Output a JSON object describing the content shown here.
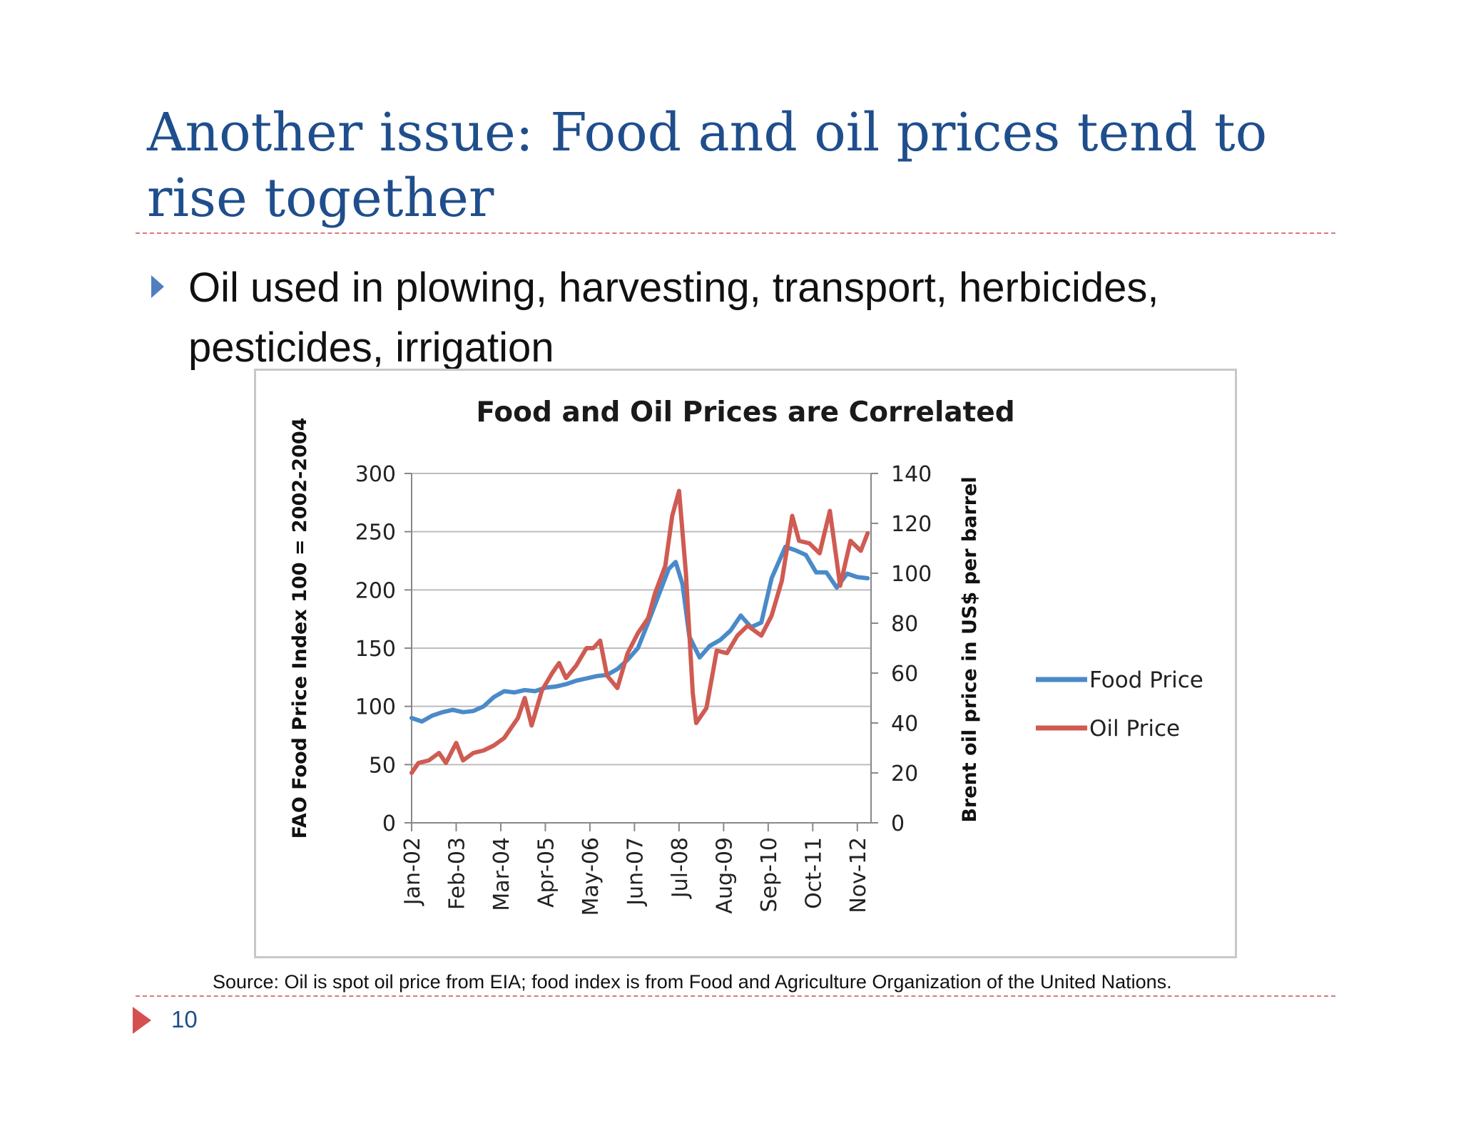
{
  "slide": {
    "title": "Another issue: Food and oil prices tend to rise together",
    "bullet": "Oil used in plowing, harvesting, transport, herbicides, pesticides, irrigation",
    "source": "Source: Oil is spot oil price from EIA; food index is from Food and Agriculture Organization of the United Nations.",
    "page_number": "10",
    "colors": {
      "title": "#1f4e8c",
      "bullet_marker": "#4f7fbf",
      "rule": "#d9797a",
      "page_marker": "#d64f4f"
    }
  },
  "chart_data": {
    "type": "line",
    "title": "Food and Oil Prices are Correlated",
    "y_left_label": "FAO Food Price Index 100 = 2002-2004",
    "y_right_label": "Brent oil price in US$ per barrel",
    "y_left_range": [
      0,
      300
    ],
    "y_left_ticks": [
      "0",
      "50",
      "100",
      "150",
      "200",
      "250",
      "300"
    ],
    "y_right_range": [
      0,
      140
    ],
    "y_right_ticks": [
      "0",
      "20",
      "40",
      "60",
      "80",
      "100",
      "120",
      "140"
    ],
    "x_tick_labels": [
      "Jan-02",
      "Feb-03",
      "Mar-04",
      "Apr-05",
      "May-06",
      "Jun-07",
      "Jul-08",
      "Aug-09",
      "Sep-10",
      "Oct-11",
      "Nov-12"
    ],
    "gridlines": "horizontal",
    "legend_position": "right",
    "series": [
      {
        "name": "Food Price",
        "axis": "left",
        "color": "#4a8ac9",
        "points": [
          [
            "2002-01",
            90
          ],
          [
            "2002-04",
            87
          ],
          [
            "2002-07",
            92
          ],
          [
            "2002-10",
            95
          ],
          [
            "2003-01",
            97
          ],
          [
            "2003-04",
            95
          ],
          [
            "2003-07",
            96
          ],
          [
            "2003-10",
            100
          ],
          [
            "2004-01",
            108
          ],
          [
            "2004-04",
            113
          ],
          [
            "2004-07",
            112
          ],
          [
            "2004-10",
            114
          ],
          [
            "2005-01",
            113
          ],
          [
            "2005-04",
            116
          ],
          [
            "2005-07",
            117
          ],
          [
            "2005-10",
            119
          ],
          [
            "2006-01",
            122
          ],
          [
            "2006-04",
            124
          ],
          [
            "2006-07",
            126
          ],
          [
            "2006-10",
            127
          ],
          [
            "2007-01",
            132
          ],
          [
            "2007-04",
            140
          ],
          [
            "2007-07",
            150
          ],
          [
            "2007-10",
            172
          ],
          [
            "2008-01",
            195
          ],
          [
            "2008-04",
            218
          ],
          [
            "2008-06",
            224
          ],
          [
            "2008-08",
            205
          ],
          [
            "2008-10",
            160
          ],
          [
            "2009-01",
            142
          ],
          [
            "2009-04",
            152
          ],
          [
            "2009-07",
            157
          ],
          [
            "2009-10",
            165
          ],
          [
            "2010-01",
            178
          ],
          [
            "2010-04",
            168
          ],
          [
            "2010-07",
            172
          ],
          [
            "2010-10",
            210
          ],
          [
            "2011-02",
            237
          ],
          [
            "2011-05",
            234
          ],
          [
            "2011-08",
            230
          ],
          [
            "2011-11",
            215
          ],
          [
            "2012-02",
            215
          ],
          [
            "2012-05",
            202
          ],
          [
            "2012-08",
            214
          ],
          [
            "2012-11",
            211
          ],
          [
            "2013-02",
            210
          ]
        ]
      },
      {
        "name": "Oil Price",
        "axis": "right",
        "color": "#cf5b52",
        "points": [
          [
            "2002-01",
            20
          ],
          [
            "2002-03",
            24
          ],
          [
            "2002-06",
            25
          ],
          [
            "2002-09",
            28
          ],
          [
            "2002-11",
            24
          ],
          [
            "2003-02",
            32
          ],
          [
            "2003-04",
            25
          ],
          [
            "2003-07",
            28
          ],
          [
            "2003-10",
            29
          ],
          [
            "2004-01",
            31
          ],
          [
            "2004-04",
            34
          ],
          [
            "2004-06",
            38
          ],
          [
            "2004-08",
            42
          ],
          [
            "2004-10",
            50
          ],
          [
            "2004-12",
            39
          ],
          [
            "2005-03",
            53
          ],
          [
            "2005-06",
            60
          ],
          [
            "2005-08",
            64
          ],
          [
            "2005-10",
            58
          ],
          [
            "2006-01",
            63
          ],
          [
            "2006-04",
            70
          ],
          [
            "2006-06",
            70
          ],
          [
            "2006-08",
            73
          ],
          [
            "2006-10",
            59
          ],
          [
            "2007-01",
            54
          ],
          [
            "2007-04",
            68
          ],
          [
            "2007-07",
            76
          ],
          [
            "2007-10",
            82
          ],
          [
            "2007-12",
            92
          ],
          [
            "2008-03",
            103
          ],
          [
            "2008-05",
            123
          ],
          [
            "2008-07",
            133
          ],
          [
            "2008-09",
            100
          ],
          [
            "2008-11",
            52
          ],
          [
            "2008-12",
            40
          ],
          [
            "2009-03",
            46
          ],
          [
            "2009-06",
            69
          ],
          [
            "2009-09",
            68
          ],
          [
            "2009-12",
            75
          ],
          [
            "2010-03",
            79
          ],
          [
            "2010-05",
            77
          ],
          [
            "2010-07",
            75
          ],
          [
            "2010-10",
            83
          ],
          [
            "2011-01",
            97
          ],
          [
            "2011-04",
            123
          ],
          [
            "2011-06",
            113
          ],
          [
            "2011-09",
            112
          ],
          [
            "2011-12",
            108
          ],
          [
            "2012-03",
            125
          ],
          [
            "2012-06",
            95
          ],
          [
            "2012-09",
            113
          ],
          [
            "2012-12",
            109
          ],
          [
            "2013-02",
            116
          ]
        ]
      }
    ]
  }
}
